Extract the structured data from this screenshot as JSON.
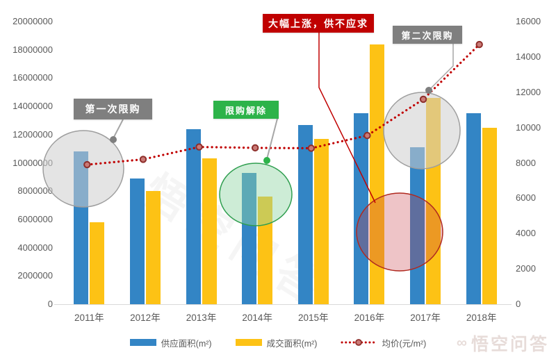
{
  "chart_data": {
    "type": "bar",
    "subtype": "grouped-bars-with-line",
    "title": "",
    "categories": [
      "2011年",
      "2012年",
      "2013年",
      "2014年",
      "2015年",
      "2016年",
      "2017年",
      "2018年"
    ],
    "series": [
      {
        "name": "供应面积(m²)",
        "type": "bar",
        "axis": "left",
        "color": "#3385C5",
        "values": [
          10800000,
          8900000,
          12400000,
          9300000,
          12700000,
          13500000,
          11100000,
          13500000
        ]
      },
      {
        "name": "成交面积(m²)",
        "type": "bar",
        "axis": "left",
        "color": "#FDC215",
        "values": [
          5800000,
          8000000,
          10300000,
          7600000,
          11700000,
          18400000,
          14600000,
          12500000
        ]
      },
      {
        "name": "均价(元/m²)",
        "type": "line",
        "axis": "right",
        "color": "#C00000",
        "line_style": "dotted",
        "values": [
          7900,
          8200,
          8900,
          8850,
          8830,
          9550,
          11600,
          14700
        ]
      }
    ],
    "left_axis": {
      "min": 0,
      "max": 20000000,
      "ticks": [
        "0",
        "2000000",
        "4000000",
        "6000000",
        "8000000",
        "10000000",
        "12000000",
        "14000000",
        "16000000",
        "18000000",
        "20000000"
      ]
    },
    "right_axis": {
      "min": 0,
      "max": 16000,
      "ticks": [
        "0",
        "2000",
        "4000",
        "6000",
        "8000",
        "10000",
        "12000",
        "14000",
        "16000"
      ]
    },
    "grid": false,
    "legend_position": "bottom",
    "annotations": [
      {
        "id": "first-restriction",
        "label": "第一次限购",
        "box_color": "#7F7F7F",
        "text_color": "#FFFFFF",
        "shape_color": "#9E9E9E"
      },
      {
        "id": "restriction-lifted",
        "label": "限购解除",
        "box_color": "#2DB34A",
        "text_color": "#FFFFFF",
        "shape_color": "#2F9E4F"
      },
      {
        "id": "sharp-rise",
        "label": "大幅上涨，供不应求",
        "box_color": "#C00000",
        "text_color": "#FFFFFF",
        "shape_color": "#B0291F"
      },
      {
        "id": "second-restriction",
        "label": "第二次限购",
        "box_color": "#7F7F7F",
        "text_color": "#FFFFFF",
        "shape_color": "#9E9E9E"
      }
    ],
    "watermark": {
      "center": "悟空问答",
      "corner": "悟空问答",
      "corner_logo": "∞"
    }
  }
}
